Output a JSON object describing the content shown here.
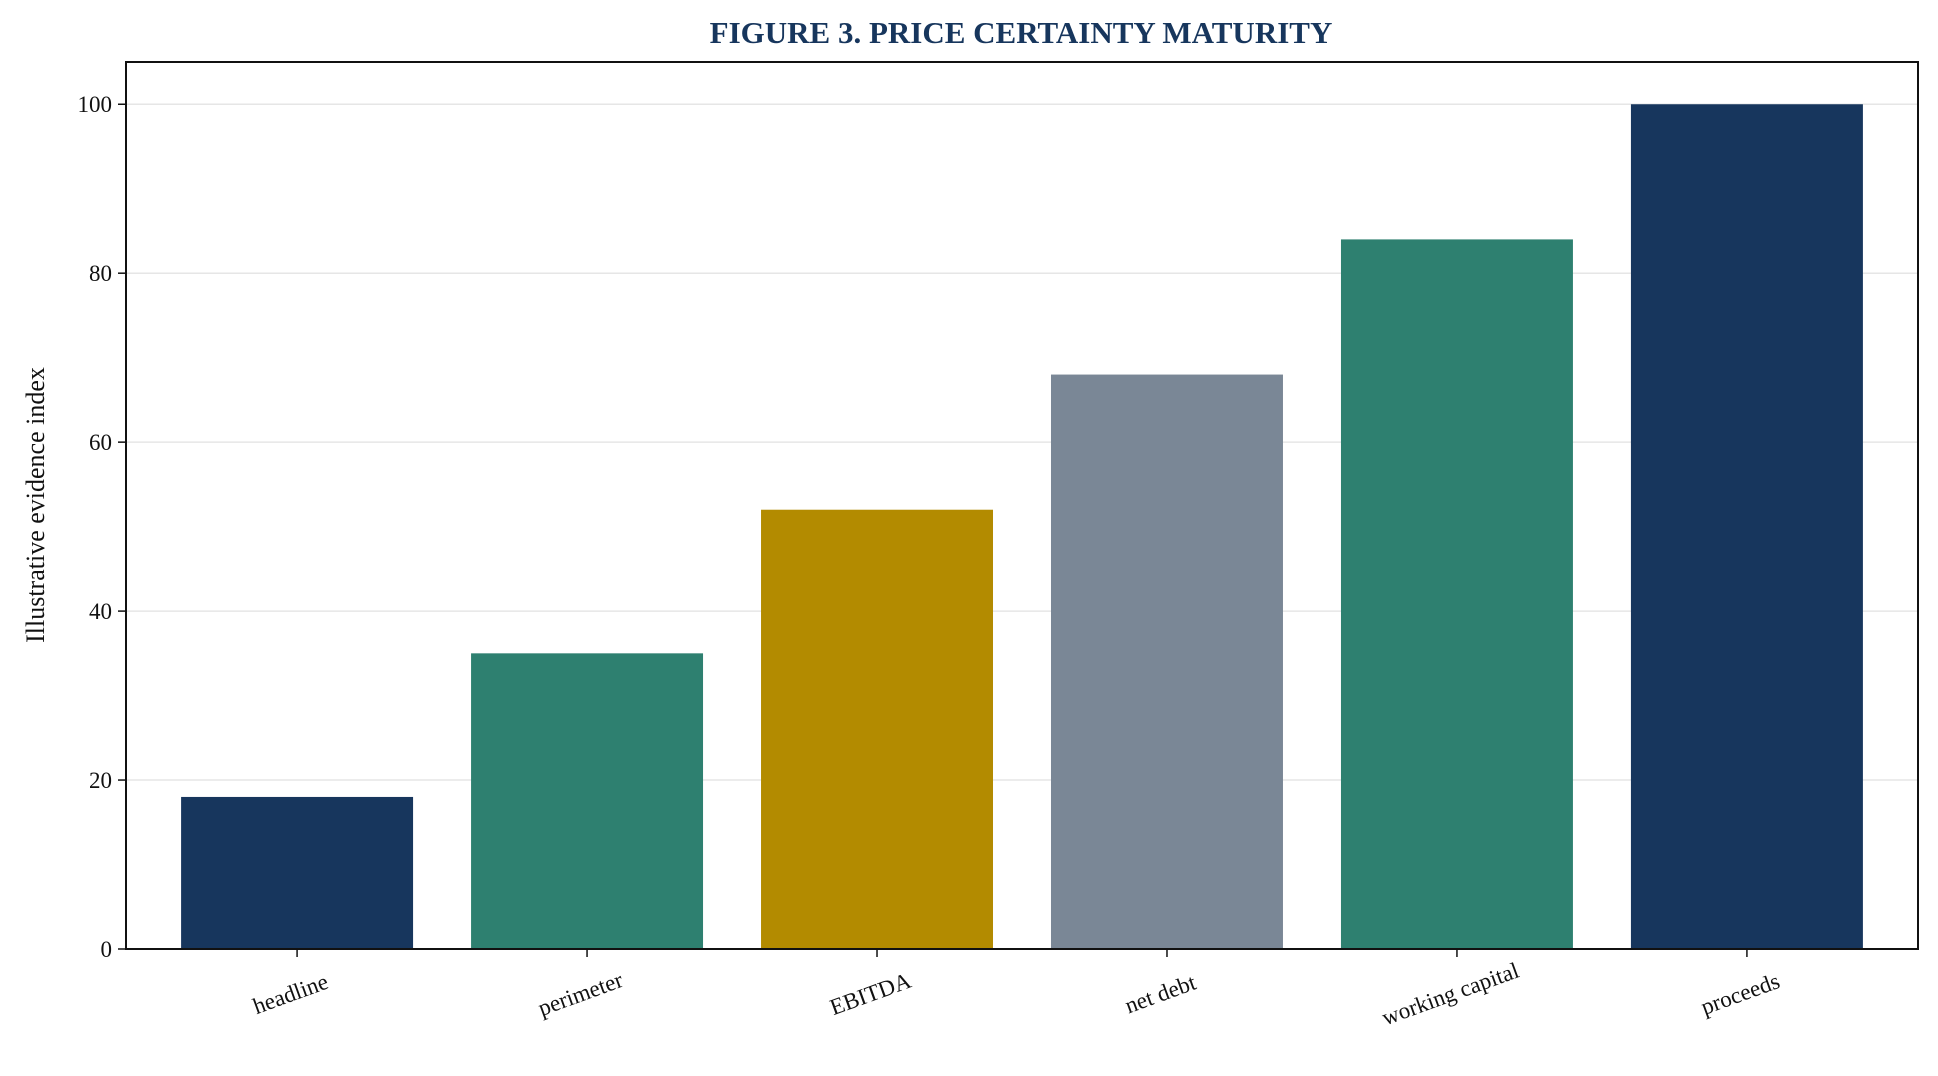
{
  "chart_data": {
    "type": "bar",
    "title": "FIGURE 3. PRICE CERTAINTY MATURITY",
    "xlabel": "",
    "ylabel": "Illustrative evidence index",
    "categories": [
      "headline",
      "perimeter",
      "EBITDA",
      "net debt",
      "working capital",
      "proceeds"
    ],
    "values": [
      18,
      35,
      52,
      68,
      84,
      100
    ],
    "colors": [
      "#17365d",
      "#2e8070",
      "#b38b00",
      "#7a8796",
      "#2e8070",
      "#17365d"
    ],
    "ylim": [
      0,
      105
    ],
    "yticks": [
      0,
      20,
      40,
      60,
      80,
      100
    ],
    "grid": true,
    "legend": "none"
  }
}
